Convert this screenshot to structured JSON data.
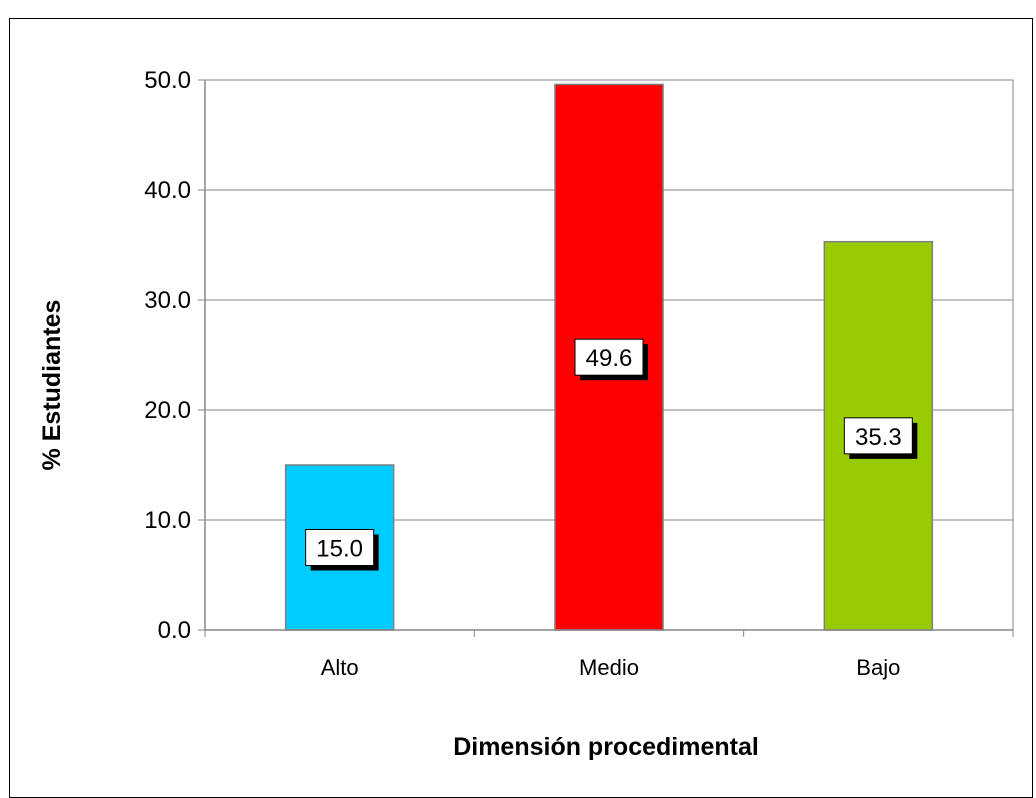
{
  "chart_data": {
    "type": "bar",
    "categories": [
      "Alto",
      "Medio",
      "Bajo"
    ],
    "values": [
      15.0,
      49.6,
      35.3
    ],
    "data_labels": [
      "15.0",
      "49.6",
      "35.3"
    ],
    "bar_colors": [
      "#00ccff",
      "#ff0000",
      "#99cc00"
    ],
    "xlabel": "Dimensión procedimental",
    "ylabel": "% Estudiantes",
    "ylim": [
      0,
      50
    ],
    "yticks": [
      "0.0",
      "10.0",
      "20.0",
      "30.0",
      "40.0",
      "50.0"
    ],
    "grid": true,
    "legend": "none"
  }
}
